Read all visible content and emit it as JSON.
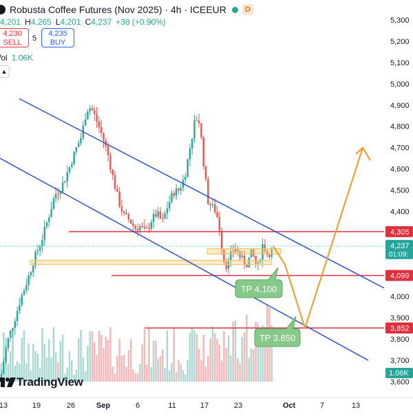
{
  "header": {
    "title": "Robusta Coffee Futures (Nov 2025) · 4h · ICEEUR",
    "badge": "D",
    "ohlc": {
      "o": "4,201",
      "h_label": "H",
      "h": "4,265",
      "l_label": "L",
      "l": "4,201",
      "c_label": "C",
      "c": "4,237",
      "change": "+38 (+0.90%)"
    },
    "sell": {
      "price": "4,230",
      "label": "SELL"
    },
    "spread": "5",
    "buy": {
      "price": "4,235",
      "label": "BUY"
    },
    "volume": {
      "label": "Vol",
      "value": "1.06K"
    }
  },
  "watermark": "TradingView",
  "colors": {
    "up": "#26a69a",
    "down": "#ef5350",
    "channel": "#2c4fd8",
    "level": "#e0303e",
    "zone": "#f2c66a",
    "path": "#f0a030",
    "tp_box": "#86c98a"
  },
  "chart_data": {
    "type": "candlestick",
    "symbol": "Robusta Coffee Futures (Nov 2025)",
    "interval": "4h",
    "exchange": "ICEEUR",
    "ylim": [
      3550,
      5350
    ],
    "y_ticks": [
      "5,300",
      "5,200",
      "5,100",
      "5,000",
      "4,900",
      "4,800",
      "4,700",
      "4,600",
      "4,500",
      "4,400",
      "4,300",
      "4,200",
      "4,100",
      "4,000",
      "3,900",
      "3,800",
      "3,700",
      "3,600"
    ],
    "x_ticks": [
      "13",
      "19",
      "26",
      "Sep",
      "6",
      "11",
      "17",
      "23",
      "Oct",
      "7",
      "13"
    ],
    "last_price": {
      "value": 4237,
      "label": "4,237",
      "countdown": "01:09:"
    },
    "volume_label": "1.06K",
    "series": [
      {
        "name": "price",
        "points": [
          [
            0,
            3600
          ],
          [
            10,
            3780
          ],
          [
            20,
            3880
          ],
          [
            30,
            3990
          ],
          [
            40,
            4080
          ],
          [
            50,
            4180
          ],
          [
            60,
            4260
          ],
          [
            70,
            4370
          ],
          [
            80,
            4480
          ],
          [
            90,
            4520
          ],
          [
            100,
            4600
          ],
          [
            110,
            4690
          ],
          [
            118,
            4750
          ],
          [
            126,
            4880
          ],
          [
            132,
            4890
          ],
          [
            140,
            4830
          ],
          [
            148,
            4760
          ],
          [
            156,
            4680
          ],
          [
            164,
            4560
          ],
          [
            172,
            4450
          ],
          [
            180,
            4380
          ],
          [
            188,
            4360
          ],
          [
            196,
            4320
          ],
          [
            204,
            4330
          ],
          [
            212,
            4300
          ],
          [
            220,
            4360
          ],
          [
            228,
            4390
          ],
          [
            236,
            4350
          ],
          [
            244,
            4430
          ],
          [
            252,
            4490
          ],
          [
            260,
            4500
          ],
          [
            268,
            4560
          ],
          [
            276,
            4700
          ],
          [
            284,
            4840
          ],
          [
            290,
            4820
          ],
          [
            296,
            4620
          ],
          [
            302,
            4450
          ],
          [
            308,
            4420
          ],
          [
            314,
            4400
          ],
          [
            320,
            4300
          ],
          [
            324,
            4180
          ],
          [
            330,
            4140
          ],
          [
            336,
            4200
          ],
          [
            342,
            4230
          ],
          [
            350,
            4180
          ],
          [
            358,
            4150
          ],
          [
            366,
            4210
          ],
          [
            374,
            4130
          ],
          [
            382,
            4250
          ],
          [
            388,
            4200
          ],
          [
            394,
            4210
          ],
          [
            398,
            4237
          ]
        ]
      }
    ],
    "levels": [
      {
        "price": 4305,
        "label": "4,305"
      },
      {
        "price": 4099,
        "label": "4,099"
      },
      {
        "price": 3852,
        "label": "3,852"
      }
    ],
    "zones": [
      [
        4200,
        4225
      ],
      [
        4150,
        4170
      ]
    ],
    "channel": [
      [
        [
          28,
          4930
        ],
        [
          558,
          4040
        ]
      ],
      [
        [
          0,
          4650
        ],
        [
          535,
          3700
        ]
      ]
    ],
    "projection": [
      [
        397,
        4235
      ],
      [
        414,
        4150
      ],
      [
        443,
        3852
      ],
      [
        527,
        4700
      ]
    ],
    "projection_arrow": [
      [
        517,
        4670
      ],
      [
        527,
        4700
      ],
      [
        538,
        4640
      ]
    ],
    "targets": [
      {
        "label": "TP 4.100",
        "price": 4040
      },
      {
        "label": "TP 3.850",
        "price": 3810
      }
    ]
  }
}
